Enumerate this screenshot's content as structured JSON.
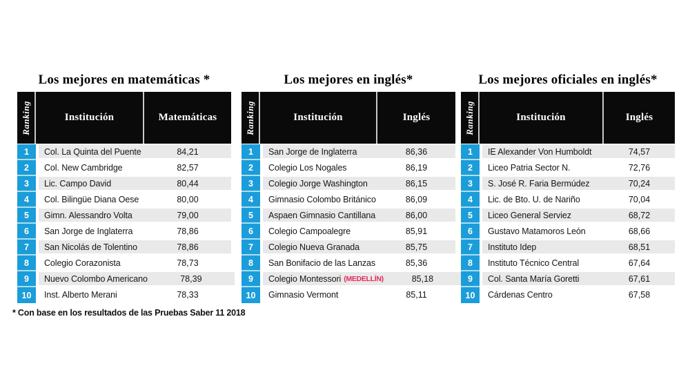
{
  "footnote": "* Con base en los resultados de las Pruebas Saber 11 2018",
  "colors": {
    "rank_column_blue": "#1b9dd9",
    "row_stripe_gray": "#e9e9e9",
    "header_black": "#0a0a0a",
    "note_red": "#e8285c"
  },
  "chart_data": [
    {
      "type": "table",
      "title": "Los mejores en matemáticas *",
      "columns": [
        "Ranking",
        "Institución",
        "Matemáticas"
      ],
      "rows": [
        {
          "rank": "1",
          "institution": "Col. La Quinta del Puente",
          "score": "84,21"
        },
        {
          "rank": "2",
          "institution": "Col. New Cambridge",
          "score": "82,57"
        },
        {
          "rank": "3",
          "institution": "Lic. Campo David",
          "score": "80,44"
        },
        {
          "rank": "4",
          "institution": "Col. Bilingüe Diana Oese",
          "score": "80,00"
        },
        {
          "rank": "5",
          "institution": "Gimn. Alessandro Volta",
          "score": "79,00"
        },
        {
          "rank": "6",
          "institution": "San Jorge de Inglaterra",
          "score": "78,86"
        },
        {
          "rank": "7",
          "institution": "San Nicolás de Tolentino",
          "score": "78,86"
        },
        {
          "rank": "8",
          "institution": "Colegio Corazonista",
          "score": "78,73"
        },
        {
          "rank": "9",
          "institution": "Nuevo Colombo Americano",
          "score": "78,39"
        },
        {
          "rank": "10",
          "institution": "Inst. Alberto Merani",
          "score": "78,33"
        }
      ]
    },
    {
      "type": "table",
      "title": "Los mejores en inglés*",
      "columns": [
        "Ranking",
        "Institución",
        "Inglés"
      ],
      "rows": [
        {
          "rank": "1",
          "institution": "San Jorge de Inglaterra",
          "score": "86,36"
        },
        {
          "rank": "2",
          "institution": "Colegio Los Nogales",
          "score": "86,19"
        },
        {
          "rank": "3",
          "institution": "Colegio Jorge Washington",
          "score": "86,15"
        },
        {
          "rank": "4",
          "institution": "Gimnasio Colombo Británico",
          "score": "86,09"
        },
        {
          "rank": "5",
          "institution": "Aspaen Gimnasio Cantillana",
          "score": "86,00"
        },
        {
          "rank": "6",
          "institution": "Colegio Campoalegre",
          "score": "85,91"
        },
        {
          "rank": "7",
          "institution": "Colegio Nueva Granada",
          "score": "85,75"
        },
        {
          "rank": "8",
          "institution": "San Bonifacio de las Lanzas",
          "score": "85,36"
        },
        {
          "rank": "9",
          "institution": "Colegio Montessori",
          "note": "(MEDELLÍN)",
          "score": "85,18"
        },
        {
          "rank": "10",
          "institution": "Gimnasio Vermont",
          "score": "85,11"
        }
      ]
    },
    {
      "type": "table",
      "title": "Los mejores oficiales en inglés*",
      "columns": [
        "Ranking",
        "Institución",
        "Inglés"
      ],
      "rows": [
        {
          "rank": "1",
          "institution": "IE  Alexander Von Humboldt",
          "score": "74,57"
        },
        {
          "rank": "2",
          "institution": "Liceo Patria Sector N.",
          "score": "72,76"
        },
        {
          "rank": "3",
          "institution": "S. José R. Faria Bermúdez",
          "score": "70,24"
        },
        {
          "rank": "4",
          "institution": "Lic. de Bto. U. de Nariño",
          "score": "70,04"
        },
        {
          "rank": "5",
          "institution": "Liceo General Serviez",
          "score": "68,72"
        },
        {
          "rank": "6",
          "institution": "Gustavo Matamoros León",
          "score": "68,66"
        },
        {
          "rank": "7",
          "institution": "Instituto Idep",
          "score": "68,51"
        },
        {
          "rank": "8",
          "institution": "Instituto Técnico Central",
          "score": "67,64"
        },
        {
          "rank": "9",
          "institution": "Col. Santa María Goretti",
          "score": "67,61"
        },
        {
          "rank": "10",
          "institution": "Cárdenas Centro",
          "score": "67,58"
        }
      ]
    }
  ]
}
